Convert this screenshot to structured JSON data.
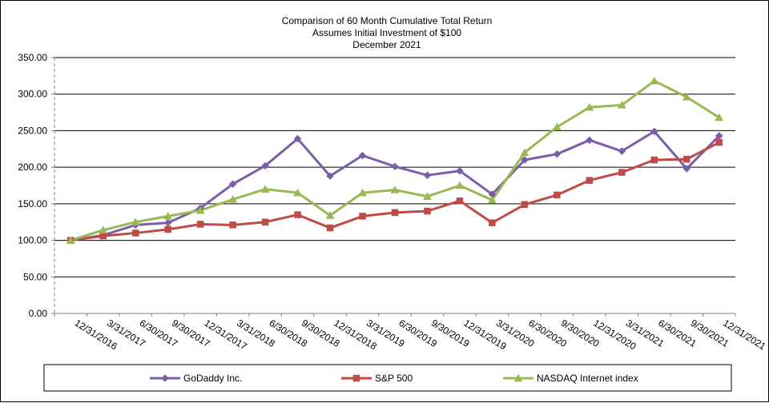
{
  "chart_data": {
    "type": "line",
    "title_lines": [
      "Comparison  of 60 Month Cumulative  Total Return",
      "Assumes Initial Investment  of $100",
      "December  2021"
    ],
    "categories": [
      "12/31/2016",
      "3/31/2017",
      "6/30/2017",
      "9/30/2017",
      "12/31/2017",
      "3/31/2018",
      "6/30/2018",
      "9/30/2018",
      "12/31/2018",
      "3/31/2019",
      "6/30/2019",
      "9/30/2019",
      "12/31/2019",
      "3/31/2020",
      "6/30/2020",
      "9/30/2020",
      "12/31/2020",
      "3/31/2021",
      "6/30/2021",
      "9/30/2021",
      "12/31/2021"
    ],
    "y_ticks": [
      "0.00",
      "50.00",
      "100.00",
      "150.00",
      "200.00",
      "250.00",
      "300.00",
      "350.00"
    ],
    "ylim": [
      0,
      350
    ],
    "grid": true,
    "legend_position": "bottom",
    "series": [
      {
        "name": "GoDaddy Inc.",
        "color": "#7B5EA7",
        "marker": "diamond",
        "values": [
          100,
          107,
          121,
          124,
          144,
          177,
          202,
          239,
          188,
          216,
          201,
          189,
          195,
          163,
          210,
          218,
          237,
          222,
          249,
          198,
          243
        ]
      },
      {
        "name": "S&P 500",
        "color": "#BE4B48",
        "marker": "square",
        "values": [
          100,
          106,
          110,
          115,
          122,
          121,
          125,
          135,
          117,
          133,
          138,
          140,
          154,
          124,
          149,
          162,
          182,
          193,
          210,
          211,
          234
        ]
      },
      {
        "name": "NASDAQ Internet index",
        "color": "#98B954",
        "marker": "triangle",
        "values": [
          100,
          114,
          125,
          133,
          141,
          156,
          170,
          165,
          134,
          165,
          169,
          160,
          175,
          155,
          220,
          255,
          282,
          285,
          318,
          296,
          268
        ]
      }
    ]
  }
}
